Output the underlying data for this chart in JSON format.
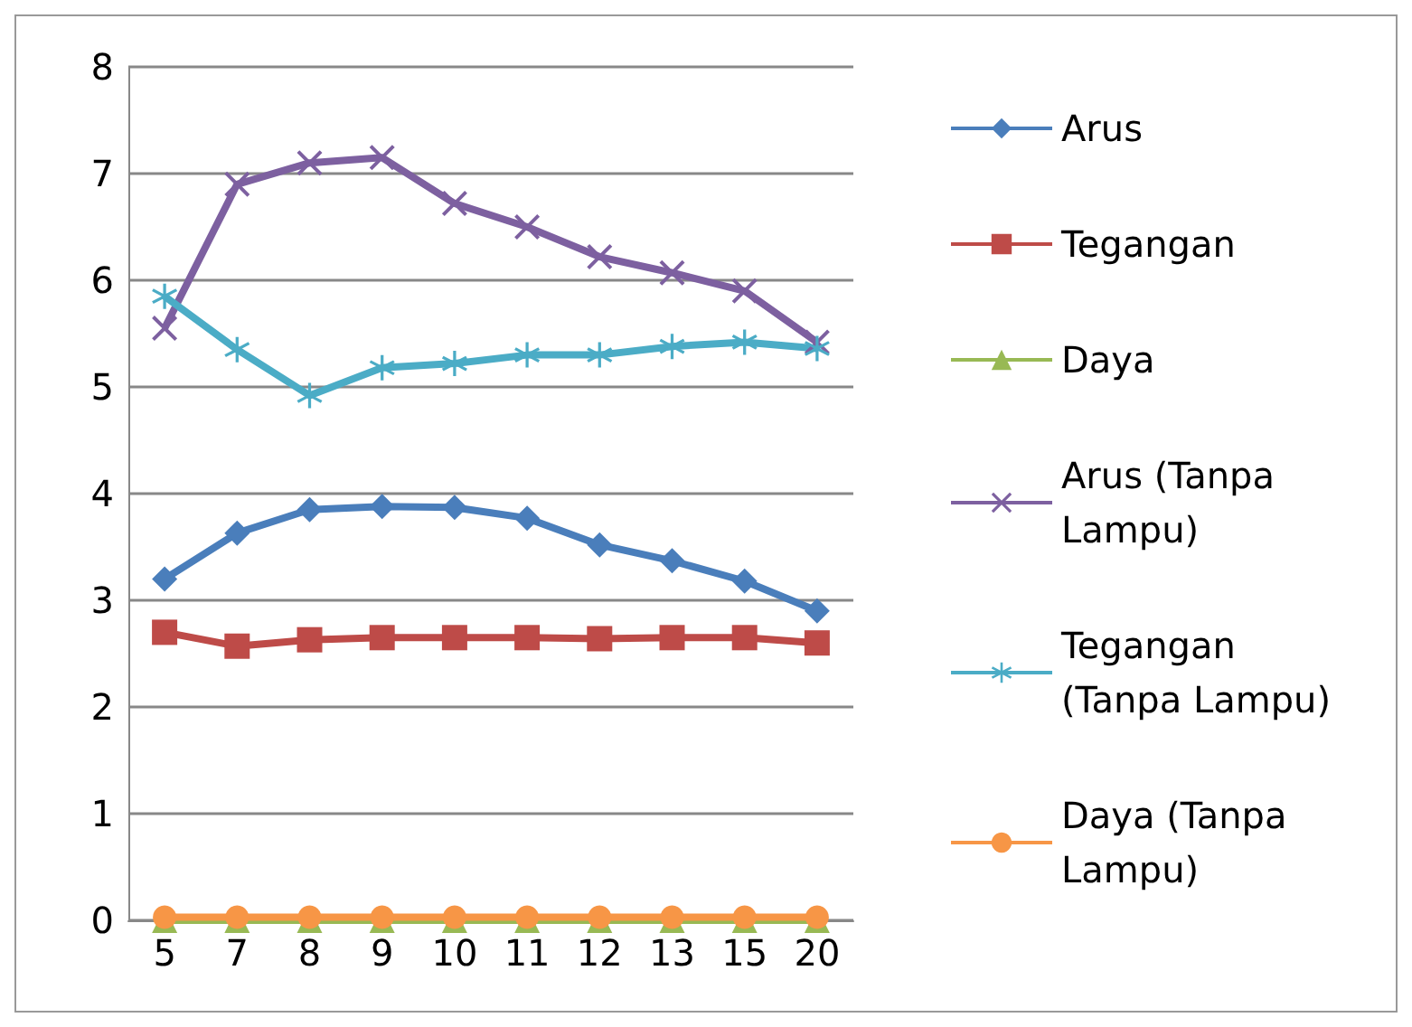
{
  "chart_data": {
    "type": "line",
    "categories": [
      "5",
      "7",
      "8",
      "9",
      "10",
      "11",
      "12",
      "13",
      "15",
      "20"
    ],
    "series": [
      {
        "name": "Arus",
        "color": "#4a7ebb",
        "marker": "diamond",
        "values": [
          3.2,
          3.63,
          3.85,
          3.88,
          3.87,
          3.77,
          3.52,
          3.37,
          3.18,
          2.9
        ]
      },
      {
        "name": "Tegangan",
        "color": "#be4b48",
        "marker": "square",
        "values": [
          2.7,
          2.57,
          2.63,
          2.65,
          2.65,
          2.65,
          2.64,
          2.65,
          2.65,
          2.6
        ]
      },
      {
        "name": "Daya",
        "color": "#98b954",
        "marker": "triangle",
        "values": [
          0,
          0,
          0,
          0,
          0,
          0,
          0,
          0,
          0,
          0
        ]
      },
      {
        "name": "Arus (Tanpa Lampu)",
        "color": "#7d60a0",
        "marker": "cross",
        "values": [
          5.55,
          6.9,
          7.1,
          7.15,
          6.72,
          6.5,
          6.22,
          6.07,
          5.9,
          5.42
        ]
      },
      {
        "name": "Tegangan (Tanpa Lampu)",
        "color": "#4bacc6",
        "marker": "star",
        "values": [
          5.85,
          5.35,
          4.92,
          5.18,
          5.22,
          5.3,
          5.3,
          5.38,
          5.42,
          5.36
        ]
      },
      {
        "name": "Daya (Tanpa Lampu)",
        "color": "#f79646",
        "marker": "circle",
        "values": [
          0.03,
          0.03,
          0.03,
          0.03,
          0.03,
          0.03,
          0.03,
          0.03,
          0.03,
          0.03
        ]
      }
    ],
    "ylim": [
      0,
      8
    ],
    "yticks": [
      0,
      1,
      2,
      3,
      4,
      5,
      6,
      7,
      8
    ],
    "grid": "y",
    "legend": "right"
  }
}
